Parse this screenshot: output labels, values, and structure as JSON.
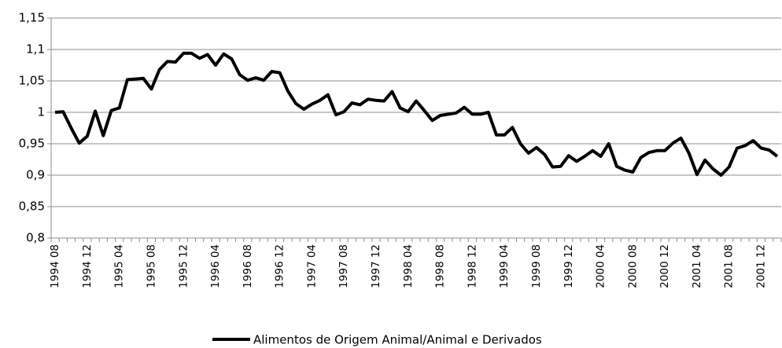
{
  "chart_data": {
    "type": "line",
    "categories": [
      "1994 08",
      null,
      null,
      null,
      "1994 12",
      null,
      null,
      null,
      "1995 04",
      null,
      null,
      null,
      "1995 08",
      null,
      null,
      null,
      "1995 12",
      null,
      null,
      null,
      "1996 04",
      null,
      null,
      null,
      "1996 08",
      null,
      null,
      null,
      "1996 12",
      null,
      null,
      null,
      "1997 04",
      null,
      null,
      null,
      "1997 08",
      null,
      null,
      null,
      "1997 12",
      null,
      null,
      null,
      "1998 04",
      null,
      null,
      null,
      "1998 08",
      null,
      null,
      null,
      "1998 12",
      null,
      null,
      null,
      "1999 04",
      null,
      null,
      null,
      "1999 08",
      null,
      null,
      null,
      "1999 12",
      null,
      null,
      null,
      "2000 04",
      null,
      null,
      null,
      "2000 08",
      null,
      null,
      null,
      "2000 12",
      null,
      null,
      null,
      "2001 04",
      null,
      null,
      null,
      "2001 08",
      null,
      null,
      null,
      "2001 12",
      null,
      null
    ],
    "series": [
      {
        "name": "Alimentos de Origem Animal/Animal e Derivados",
        "color": "#000000",
        "values": [
          1.0,
          1.001,
          0.975,
          0.951,
          0.962,
          1.002,
          0.963,
          1.003,
          1.007,
          1.052,
          1.053,
          1.054,
          1.037,
          1.068,
          1.081,
          1.08,
          1.094,
          1.094,
          1.086,
          1.092,
          1.075,
          1.093,
          1.085,
          1.06,
          1.051,
          1.055,
          1.051,
          1.065,
          1.063,
          1.034,
          1.014,
          1.005,
          1.013,
          1.019,
          1.028,
          0.996,
          1.001,
          1.015,
          1.012,
          1.021,
          1.019,
          1.018,
          1.033,
          1.007,
          1.001,
          1.018,
          1.003,
          0.987,
          0.995,
          0.997,
          0.999,
          1.008,
          0.997,
          0.997,
          1.0,
          0.964,
          0.964,
          0.976,
          0.95,
          0.935,
          0.944,
          0.933,
          0.913,
          0.914,
          0.931,
          0.922,
          0.93,
          0.939,
          0.93,
          0.95,
          0.914,
          0.908,
          0.905,
          0.928,
          0.936,
          0.939,
          0.939,
          0.951,
          0.959,
          0.935,
          0.901,
          0.924,
          0.91,
          0.9,
          0.913,
          0.943,
          0.947,
          0.955,
          0.943,
          0.94,
          0.93
        ]
      }
    ],
    "ylim": [
      0.8,
      1.15
    ],
    "yticks": [
      {
        "value": 0.8,
        "label": "0,8"
      },
      {
        "value": 0.85,
        "label": "0,85"
      },
      {
        "value": 0.9,
        "label": "0,9"
      },
      {
        "value": 0.95,
        "label": "0,95"
      },
      1,
      {
        "value": 1.05,
        "label": "1,05"
      },
      {
        "value": 1.1,
        "label": "1,1"
      },
      {
        "value": 1.15,
        "label": "1,15"
      }
    ],
    "grid": true
  }
}
